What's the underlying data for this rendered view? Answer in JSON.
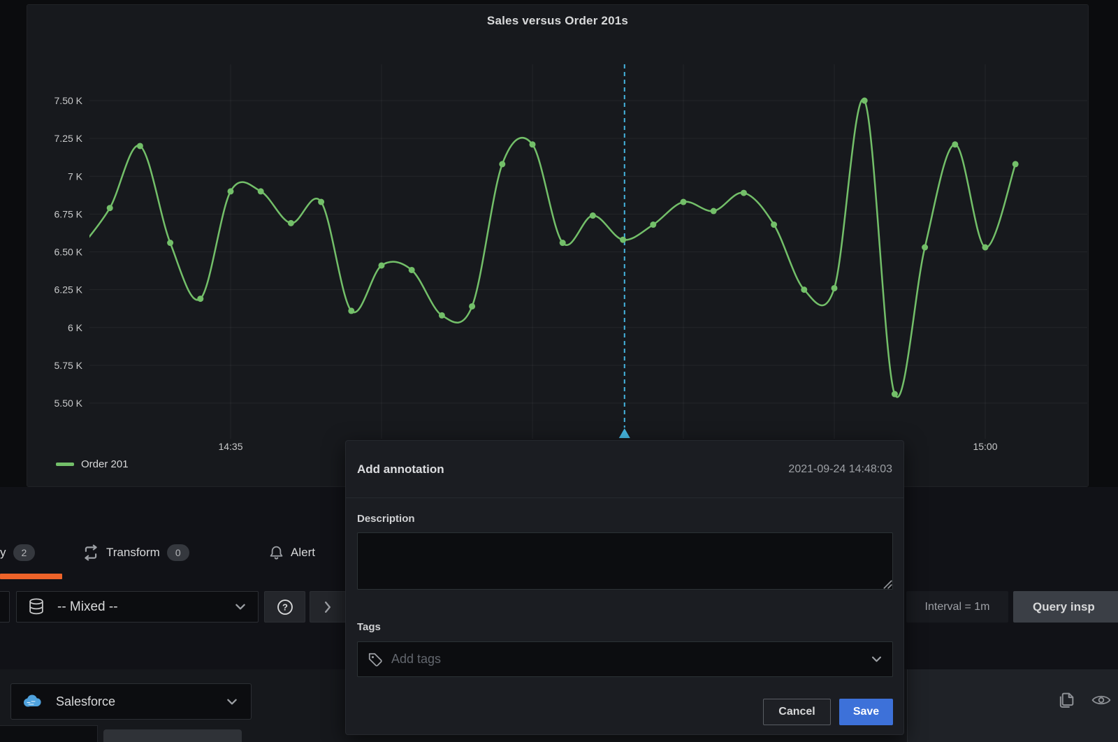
{
  "panel": {
    "title": "Sales versus Order 201s"
  },
  "chart_data": {
    "type": "line",
    "title": "Sales versus Order 201s",
    "unit": "K",
    "x": [
      "14:30",
      "14:31",
      "14:32",
      "14:33",
      "14:34",
      "14:35",
      "14:36",
      "14:37",
      "14:38",
      "14:39",
      "14:40",
      "14:41",
      "14:42",
      "14:43",
      "14:44",
      "14:45",
      "14:46",
      "14:47",
      "14:48",
      "14:49",
      "14:50",
      "14:51",
      "14:52",
      "14:53",
      "14:54",
      "14:55",
      "14:56",
      "14:57",
      "14:58",
      "14:59",
      "15:00",
      "15:01"
    ],
    "series": [
      {
        "name": "Order 201",
        "color": "#73bf69",
        "values": [
          6.52,
          6.79,
          7.2,
          6.56,
          6.19,
          6.9,
          6.9,
          6.69,
          6.83,
          6.11,
          6.41,
          6.38,
          6.08,
          6.14,
          7.08,
          7.21,
          6.56,
          6.74,
          6.58,
          6.68,
          6.83,
          6.77,
          6.89,
          6.68,
          6.25,
          6.26,
          7.5,
          5.56,
          6.53,
          7.21,
          6.53,
          7.08
        ]
      }
    ],
    "y_ticks": [
      {
        "label": "7.50 K",
        "value": 7.5
      },
      {
        "label": "7.25 K",
        "value": 7.25
      },
      {
        "label": "7 K",
        "value": 7.0
      },
      {
        "label": "6.75 K",
        "value": 6.75
      },
      {
        "label": "6.50 K",
        "value": 6.5
      },
      {
        "label": "6.25 K",
        "value": 6.25
      },
      {
        "label": "6 K",
        "value": 6.0
      },
      {
        "label": "5.75 K",
        "value": 5.75
      },
      {
        "label": "5.50 K",
        "value": 5.5
      }
    ],
    "x_ticks": [
      {
        "label": "14:35",
        "minute": 5
      },
      {
        "label": "15:00",
        "minute": 30
      }
    ],
    "grid_minutes": [
      5,
      10,
      15,
      20,
      25,
      30
    ],
    "ylim": [
      5.38,
      7.7
    ],
    "grid": true,
    "legend_position": "bottom-left",
    "annotation": {
      "timestamp": "2021-09-24 14:48:03",
      "minute_offset": 18.05,
      "color": "#45b5e0"
    }
  },
  "tabs": {
    "query_partial_label": "y",
    "query_badge": "2",
    "transform_label": "Transform",
    "transform_badge": "0",
    "alert_label": "Alert"
  },
  "toolbar": {
    "datasource_label": "-- Mixed --",
    "interval_label": "Interval = 1m",
    "inspector_label": "Query insp"
  },
  "query_row": {
    "datasource_label": "Salesforce"
  },
  "dialog": {
    "title": "Add annotation",
    "timestamp": "2021-09-24 14:48:03",
    "description_label": "Description",
    "tags_label": "Tags",
    "tags_placeholder": "Add tags",
    "cancel_label": "Cancel",
    "save_label": "Save"
  }
}
